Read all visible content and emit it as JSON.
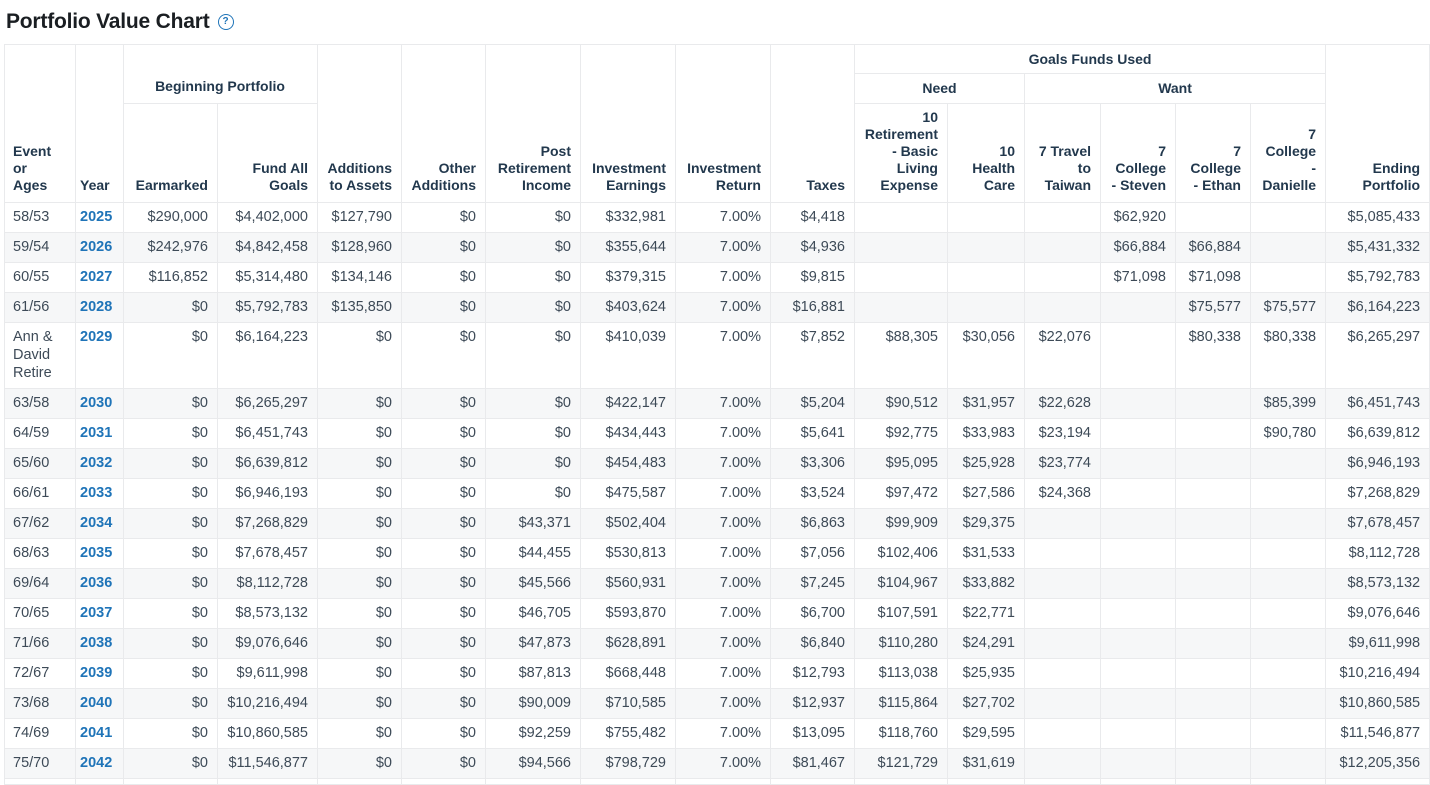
{
  "page": {
    "title": "Portfolio Value Chart",
    "help_icon_glyph": "?"
  },
  "colors": {
    "accent_blue": "#1f74b8",
    "header_text": "#22384d",
    "body_text": "#3d4a57",
    "row_stripe": "#f6f7f8",
    "grid_border": "#e9eaec"
  },
  "table": {
    "groups": {
      "beginning_portfolio": "Beginning Portfolio",
      "goals_funds_used": "Goals Funds Used",
      "need": "Need",
      "want": "Want"
    },
    "columns": {
      "event": "Event or Ages",
      "year": "Year",
      "earmarked": "Earmarked",
      "fund_all_goals": "Fund All Goals",
      "additions_to_assets": "Additions to Assets",
      "other_additions": "Other Additions",
      "post_retirement_income": "Post Retirement Income",
      "investment_earnings": "Investment Earnings",
      "investment_return": "Investment Return",
      "taxes": "Taxes",
      "retirement_basic_living_expense": "10 Retirement - Basic Living Expense",
      "health_care": "10 Health Care",
      "travel_to_taiwan": "7 Travel to Taiwan",
      "college_steven": "7 College - Steven",
      "college_ethan": "7 College - Ethan",
      "college_danielle": "7 College - Danielle",
      "ending_portfolio": "Ending Portfolio"
    },
    "column_keys": [
      "event",
      "year",
      "earmarked",
      "fund_all_goals",
      "additions_to_assets",
      "other_additions",
      "post_retirement_income",
      "investment_earnings",
      "investment_return",
      "taxes",
      "retirement_basic_living_expense",
      "health_care",
      "travel_to_taiwan",
      "college_steven",
      "college_ethan",
      "college_danielle",
      "ending_portfolio"
    ],
    "rows": [
      {
        "event": "58/53",
        "year": "2025",
        "earmarked": "$290,000",
        "fund_all_goals": "$4,402,000",
        "additions_to_assets": "$127,790",
        "other_additions": "$0",
        "post_retirement_income": "$0",
        "investment_earnings": "$332,981",
        "investment_return": "7.00%",
        "taxes": "$4,418",
        "retirement_basic_living_expense": "",
        "health_care": "",
        "travel_to_taiwan": "",
        "college_steven": "$62,920",
        "college_ethan": "",
        "college_danielle": "",
        "ending_portfolio": "$5,085,433"
      },
      {
        "event": "59/54",
        "year": "2026",
        "earmarked": "$242,976",
        "fund_all_goals": "$4,842,458",
        "additions_to_assets": "$128,960",
        "other_additions": "$0",
        "post_retirement_income": "$0",
        "investment_earnings": "$355,644",
        "investment_return": "7.00%",
        "taxes": "$4,936",
        "retirement_basic_living_expense": "",
        "health_care": "",
        "travel_to_taiwan": "",
        "college_steven": "$66,884",
        "college_ethan": "$66,884",
        "college_danielle": "",
        "ending_portfolio": "$5,431,332"
      },
      {
        "event": "60/55",
        "year": "2027",
        "earmarked": "$116,852",
        "fund_all_goals": "$5,314,480",
        "additions_to_assets": "$134,146",
        "other_additions": "$0",
        "post_retirement_income": "$0",
        "investment_earnings": "$379,315",
        "investment_return": "7.00%",
        "taxes": "$9,815",
        "retirement_basic_living_expense": "",
        "health_care": "",
        "travel_to_taiwan": "",
        "college_steven": "$71,098",
        "college_ethan": "$71,098",
        "college_danielle": "",
        "ending_portfolio": "$5,792,783"
      },
      {
        "event": "61/56",
        "year": "2028",
        "earmarked": "$0",
        "fund_all_goals": "$5,792,783",
        "additions_to_assets": "$135,850",
        "other_additions": "$0",
        "post_retirement_income": "$0",
        "investment_earnings": "$403,624",
        "investment_return": "7.00%",
        "taxes": "$16,881",
        "retirement_basic_living_expense": "",
        "health_care": "",
        "travel_to_taiwan": "",
        "college_steven": "",
        "college_ethan": "$75,577",
        "college_danielle": "$75,577",
        "ending_portfolio": "$6,164,223"
      },
      {
        "event": "Ann & David Retire",
        "year": "2029",
        "earmarked": "$0",
        "fund_all_goals": "$6,164,223",
        "additions_to_assets": "$0",
        "other_additions": "$0",
        "post_retirement_income": "$0",
        "investment_earnings": "$410,039",
        "investment_return": "7.00%",
        "taxes": "$7,852",
        "retirement_basic_living_expense": "$88,305",
        "health_care": "$30,056",
        "travel_to_taiwan": "$22,076",
        "college_steven": "",
        "college_ethan": "$80,338",
        "college_danielle": "$80,338",
        "ending_portfolio": "$6,265,297"
      },
      {
        "event": "63/58",
        "year": "2030",
        "earmarked": "$0",
        "fund_all_goals": "$6,265,297",
        "additions_to_assets": "$0",
        "other_additions": "$0",
        "post_retirement_income": "$0",
        "investment_earnings": "$422,147",
        "investment_return": "7.00%",
        "taxes": "$5,204",
        "retirement_basic_living_expense": "$90,512",
        "health_care": "$31,957",
        "travel_to_taiwan": "$22,628",
        "college_steven": "",
        "college_ethan": "",
        "college_danielle": "$85,399",
        "ending_portfolio": "$6,451,743"
      },
      {
        "event": "64/59",
        "year": "2031",
        "earmarked": "$0",
        "fund_all_goals": "$6,451,743",
        "additions_to_assets": "$0",
        "other_additions": "$0",
        "post_retirement_income": "$0",
        "investment_earnings": "$434,443",
        "investment_return": "7.00%",
        "taxes": "$5,641",
        "retirement_basic_living_expense": "$92,775",
        "health_care": "$33,983",
        "travel_to_taiwan": "$23,194",
        "college_steven": "",
        "college_ethan": "",
        "college_danielle": "$90,780",
        "ending_portfolio": "$6,639,812"
      },
      {
        "event": "65/60",
        "year": "2032",
        "earmarked": "$0",
        "fund_all_goals": "$6,639,812",
        "additions_to_assets": "$0",
        "other_additions": "$0",
        "post_retirement_income": "$0",
        "investment_earnings": "$454,483",
        "investment_return": "7.00%",
        "taxes": "$3,306",
        "retirement_basic_living_expense": "$95,095",
        "health_care": "$25,928",
        "travel_to_taiwan": "$23,774",
        "college_steven": "",
        "college_ethan": "",
        "college_danielle": "",
        "ending_portfolio": "$6,946,193"
      },
      {
        "event": "66/61",
        "year": "2033",
        "earmarked": "$0",
        "fund_all_goals": "$6,946,193",
        "additions_to_assets": "$0",
        "other_additions": "$0",
        "post_retirement_income": "$0",
        "investment_earnings": "$475,587",
        "investment_return": "7.00%",
        "taxes": "$3,524",
        "retirement_basic_living_expense": "$97,472",
        "health_care": "$27,586",
        "travel_to_taiwan": "$24,368",
        "college_steven": "",
        "college_ethan": "",
        "college_danielle": "",
        "ending_portfolio": "$7,268,829"
      },
      {
        "event": "67/62",
        "year": "2034",
        "earmarked": "$0",
        "fund_all_goals": "$7,268,829",
        "additions_to_assets": "$0",
        "other_additions": "$0",
        "post_retirement_income": "$43,371",
        "investment_earnings": "$502,404",
        "investment_return": "7.00%",
        "taxes": "$6,863",
        "retirement_basic_living_expense": "$99,909",
        "health_care": "$29,375",
        "travel_to_taiwan": "",
        "college_steven": "",
        "college_ethan": "",
        "college_danielle": "",
        "ending_portfolio": "$7,678,457"
      },
      {
        "event": "68/63",
        "year": "2035",
        "earmarked": "$0",
        "fund_all_goals": "$7,678,457",
        "additions_to_assets": "$0",
        "other_additions": "$0",
        "post_retirement_income": "$44,455",
        "investment_earnings": "$530,813",
        "investment_return": "7.00%",
        "taxes": "$7,056",
        "retirement_basic_living_expense": "$102,406",
        "health_care": "$31,533",
        "travel_to_taiwan": "",
        "college_steven": "",
        "college_ethan": "",
        "college_danielle": "",
        "ending_portfolio": "$8,112,728"
      },
      {
        "event": "69/64",
        "year": "2036",
        "earmarked": "$0",
        "fund_all_goals": "$8,112,728",
        "additions_to_assets": "$0",
        "other_additions": "$0",
        "post_retirement_income": "$45,566",
        "investment_earnings": "$560,931",
        "investment_return": "7.00%",
        "taxes": "$7,245",
        "retirement_basic_living_expense": "$104,967",
        "health_care": "$33,882",
        "travel_to_taiwan": "",
        "college_steven": "",
        "college_ethan": "",
        "college_danielle": "",
        "ending_portfolio": "$8,573,132"
      },
      {
        "event": "70/65",
        "year": "2037",
        "earmarked": "$0",
        "fund_all_goals": "$8,573,132",
        "additions_to_assets": "$0",
        "other_additions": "$0",
        "post_retirement_income": "$46,705",
        "investment_earnings": "$593,870",
        "investment_return": "7.00%",
        "taxes": "$6,700",
        "retirement_basic_living_expense": "$107,591",
        "health_care": "$22,771",
        "travel_to_taiwan": "",
        "college_steven": "",
        "college_ethan": "",
        "college_danielle": "",
        "ending_portfolio": "$9,076,646"
      },
      {
        "event": "71/66",
        "year": "2038",
        "earmarked": "$0",
        "fund_all_goals": "$9,076,646",
        "additions_to_assets": "$0",
        "other_additions": "$0",
        "post_retirement_income": "$47,873",
        "investment_earnings": "$628,891",
        "investment_return": "7.00%",
        "taxes": "$6,840",
        "retirement_basic_living_expense": "$110,280",
        "health_care": "$24,291",
        "travel_to_taiwan": "",
        "college_steven": "",
        "college_ethan": "",
        "college_danielle": "",
        "ending_portfolio": "$9,611,998"
      },
      {
        "event": "72/67",
        "year": "2039",
        "earmarked": "$0",
        "fund_all_goals": "$9,611,998",
        "additions_to_assets": "$0",
        "other_additions": "$0",
        "post_retirement_income": "$87,813",
        "investment_earnings": "$668,448",
        "investment_return": "7.00%",
        "taxes": "$12,793",
        "retirement_basic_living_expense": "$113,038",
        "health_care": "$25,935",
        "travel_to_taiwan": "",
        "college_steven": "",
        "college_ethan": "",
        "college_danielle": "",
        "ending_portfolio": "$10,216,494"
      },
      {
        "event": "73/68",
        "year": "2040",
        "earmarked": "$0",
        "fund_all_goals": "$10,216,494",
        "additions_to_assets": "$0",
        "other_additions": "$0",
        "post_retirement_income": "$90,009",
        "investment_earnings": "$710,585",
        "investment_return": "7.00%",
        "taxes": "$12,937",
        "retirement_basic_living_expense": "$115,864",
        "health_care": "$27,702",
        "travel_to_taiwan": "",
        "college_steven": "",
        "college_ethan": "",
        "college_danielle": "",
        "ending_portfolio": "$10,860,585"
      },
      {
        "event": "74/69",
        "year": "2041",
        "earmarked": "$0",
        "fund_all_goals": "$10,860,585",
        "additions_to_assets": "$0",
        "other_additions": "$0",
        "post_retirement_income": "$92,259",
        "investment_earnings": "$755,482",
        "investment_return": "7.00%",
        "taxes": "$13,095",
        "retirement_basic_living_expense": "$118,760",
        "health_care": "$29,595",
        "travel_to_taiwan": "",
        "college_steven": "",
        "college_ethan": "",
        "college_danielle": "",
        "ending_portfolio": "$11,546,877"
      },
      {
        "event": "75/70",
        "year": "2042",
        "earmarked": "$0",
        "fund_all_goals": "$11,546,877",
        "additions_to_assets": "$0",
        "other_additions": "$0",
        "post_retirement_income": "$94,566",
        "investment_earnings": "$798,729",
        "investment_return": "7.00%",
        "taxes": "$81,467",
        "retirement_basic_living_expense": "$121,729",
        "health_care": "$31,619",
        "travel_to_taiwan": "",
        "college_steven": "",
        "college_ethan": "",
        "college_danielle": "",
        "ending_portfolio": "$12,205,356"
      }
    ]
  }
}
